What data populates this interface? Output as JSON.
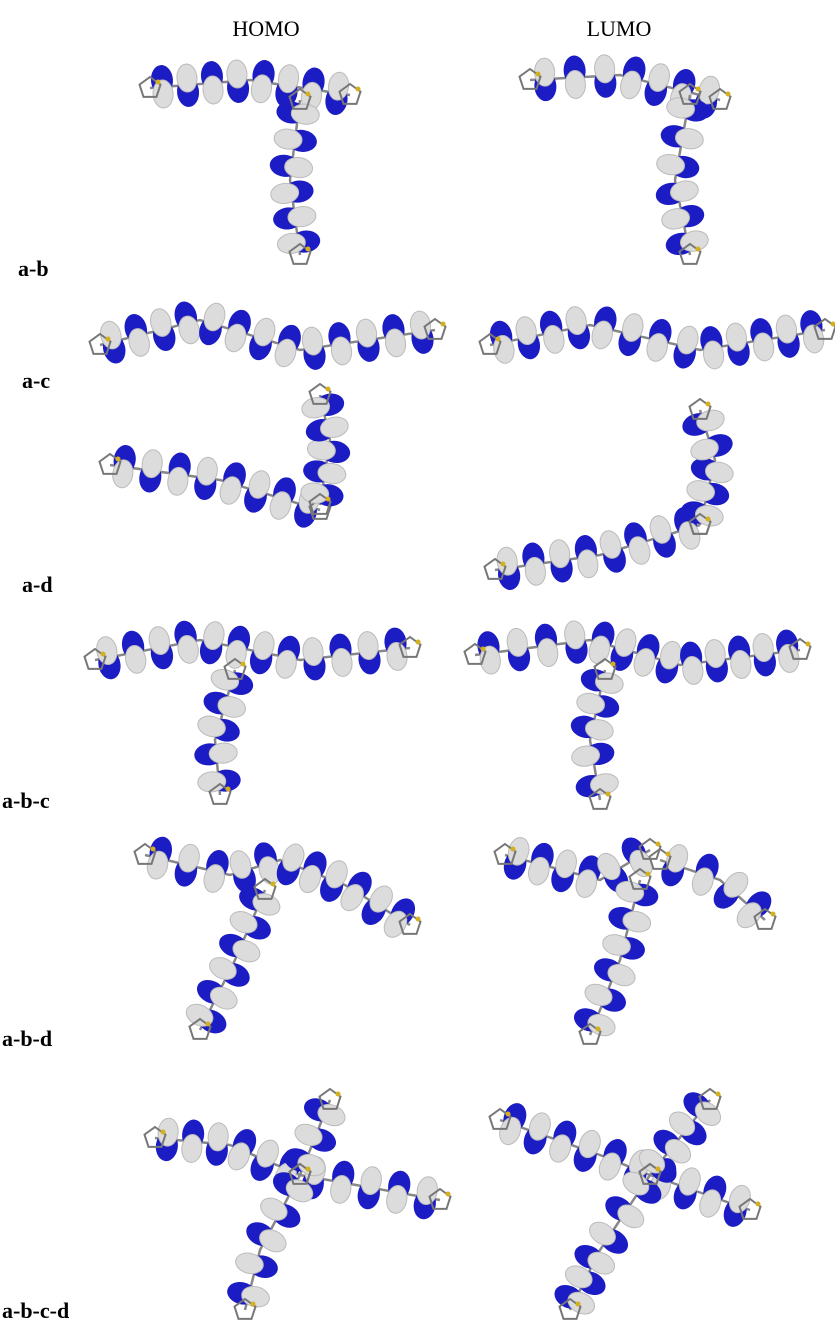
{
  "columns": [
    "HOMO",
    "LUMO"
  ],
  "rows": [
    {
      "label": "a-b"
    },
    {
      "label": "a-c"
    },
    {
      "label": "a-d"
    },
    {
      "label": "a-b-c"
    },
    {
      "label": "a-b-d"
    },
    {
      "label": "a-b-c-d"
    }
  ]
}
